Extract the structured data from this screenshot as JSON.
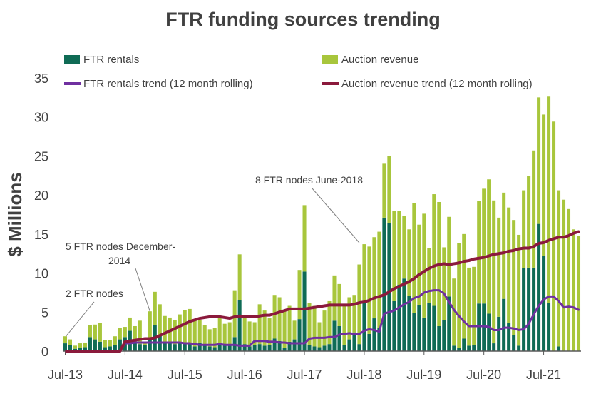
{
  "chart_data": {
    "type": "bar",
    "title": "FTR funding sources trending",
    "ylabel": "$ Millions",
    "xlabel": "",
    "ylim": [
      0,
      35
    ],
    "yticks": [
      0,
      5,
      10,
      15,
      20,
      25,
      30,
      35
    ],
    "grid": false,
    "legend_placement": "top",
    "stacked": true,
    "x_tick_labels": [
      {
        "label": "Jul-13",
        "index": 0
      },
      {
        "label": "Jul-14",
        "index": 12
      },
      {
        "label": "Jul-15",
        "index": 24
      },
      {
        "label": "Jul-16",
        "index": 36
      },
      {
        "label": "Jul-17",
        "index": 48
      },
      {
        "label": "Jul-18",
        "index": 60
      },
      {
        "label": "Jul-19",
        "index": 72
      },
      {
        "label": "Jul-20",
        "index": 84
      },
      {
        "label": "Jul-21",
        "index": 96
      }
    ],
    "series": [
      {
        "name": "FTR rentals",
        "kind": "bar",
        "color": "#0f6b55",
        "values": [
          1.0,
          0.8,
          0.3,
          0.4,
          0.5,
          1.8,
          1.5,
          1.2,
          0.5,
          0.6,
          0.8,
          1.5,
          1.8,
          2.6,
          1.2,
          0.9,
          0.8,
          1.6,
          3.3,
          2.0,
          1.2,
          1.0,
          0.9,
          1.0,
          1.1,
          0.9,
          0.6,
          1.1,
          0.8,
          0.6,
          0.5,
          0.8,
          0.7,
          0.9,
          1.8,
          6.5,
          0.9,
          0.6,
          0.8,
          0.9,
          0.7,
          0.8,
          1.6,
          1.3,
          0.4,
          1.2,
          1.5,
          4.1,
          10.2,
          0.8,
          0.6,
          0.5,
          0.7,
          0.9,
          3.9,
          3.2,
          0.8,
          1.5,
          2.4,
          0.9,
          6.4,
          2.2,
          4.2,
          3.0,
          17.1,
          16.4,
          6.4,
          8.5,
          9.3,
          7.1,
          4.9,
          5.9,
          4.3,
          6.2,
          5.8,
          3.2,
          4.0,
          7.0,
          0.7,
          0.4,
          1.6,
          0.7,
          0.8,
          6.1,
          6.1,
          4.8,
          1.0,
          4.4,
          6.7,
          3.6,
          2.1,
          0.7,
          10.6,
          10.7,
          10.7,
          16.3,
          12.2,
          6.2,
          0.0,
          0.6,
          0.0,
          0.0,
          0.0,
          0.0
        ],
        "note": "values in $ Millions; 104 monthly bars from Jul-13"
      },
      {
        "name": "Auction revenue",
        "kind": "bar",
        "color": "#a8c63c",
        "values": [
          0.9,
          0.7,
          0.4,
          0.6,
          0.6,
          1.5,
          1.9,
          2.4,
          0.9,
          0.8,
          1.1,
          1.5,
          1.3,
          1.7,
          2.0,
          3.0,
          0.4,
          3.5,
          4.3,
          4.0,
          3.3,
          3.3,
          3.1,
          3.7,
          4.2,
          4.5,
          3.4,
          2.9,
          2.5,
          2.2,
          2.5,
          3.6,
          2.8,
          2.8,
          6.0,
          5.9,
          3.6,
          3.2,
          2.9,
          5.1,
          4.5,
          3.4,
          5.6,
          5.6,
          4.7,
          4.6,
          2.4,
          6.3,
          8.5,
          5.4,
          5.2,
          3.2,
          4.5,
          5.5,
          5.8,
          5.4,
          5.2,
          5.4,
          4.8,
          10.2,
          7.3,
          11.2,
          10.4,
          12.3,
          6.9,
          8.6,
          11.6,
          9.5,
          8.0,
          8.5,
          14.1,
          10.3,
          13.3,
          7.0,
          14.3,
          15.9,
          9.3,
          10.2,
          8.6,
          13.4,
          13.4,
          10.0,
          10.0,
          13.1,
          14.7,
          17.2,
          18.3,
          12.7,
          13.6,
          14.8,
          14.7,
          14.2,
          10.0,
          11.7,
          15.0,
          16.2,
          18.1,
          26.4,
          29.4,
          20.0,
          19.4,
          18.2,
          15.6,
          14.8
        ],
        "note": "stacked on top of FTR rentals"
      },
      {
        "name": "FTR rentals trend (12 month rolling)",
        "kind": "line",
        "color": "#7030a0",
        "values": [
          0.0,
          0.0,
          0.0,
          0.0,
          0.0,
          0.0,
          0.0,
          0.0,
          0.0,
          0.0,
          0.0,
          0.0,
          1.0,
          1.0,
          1.1,
          1.1,
          1.1,
          1.1,
          1.1,
          1.1,
          1.1,
          1.1,
          1.1,
          1.1,
          1.0,
          1.0,
          0.9,
          0.8,
          0.8,
          0.8,
          0.8,
          0.9,
          0.8,
          0.8,
          0.8,
          0.7,
          0.7,
          0.7,
          1.3,
          1.3,
          1.3,
          1.2,
          1.2,
          1.1,
          1.1,
          1.0,
          1.0,
          1.0,
          1.0,
          1.6,
          1.7,
          1.7,
          1.7,
          1.8,
          1.8,
          2.1,
          2.2,
          2.3,
          2.2,
          2.2,
          2.6,
          2.8,
          2.7,
          2.5,
          4.8,
          5.0,
          5.2,
          5.6,
          6.0,
          6.3,
          6.8,
          7.0,
          7.5,
          7.7,
          7.8,
          7.8,
          7.4,
          6.3,
          5.3,
          4.5,
          3.8,
          3.2,
          3.2,
          3.2,
          3.2,
          3.1,
          2.7,
          2.7,
          3.0,
          3.0,
          2.9,
          2.7,
          2.8,
          3.5,
          4.7,
          5.8,
          6.6,
          7.0,
          7.0,
          6.4,
          5.6,
          5.7,
          5.6,
          5.3
        ]
      },
      {
        "name": "Auction revenue trend (12 month rolling)",
        "kind": "line",
        "color": "#8b1a3c",
        "values": [
          0.0,
          0.0,
          0.0,
          0.0,
          0.0,
          0.0,
          0.0,
          0.0,
          0.0,
          0.0,
          0.0,
          0.0,
          1.2,
          1.3,
          1.4,
          1.5,
          1.6,
          1.6,
          1.7,
          2.0,
          2.3,
          2.6,
          2.9,
          3.2,
          3.5,
          3.8,
          4.0,
          4.2,
          4.3,
          4.4,
          4.4,
          4.4,
          4.3,
          4.2,
          4.4,
          4.5,
          4.4,
          4.4,
          4.4,
          4.5,
          4.6,
          4.6,
          4.8,
          5.0,
          5.2,
          5.4,
          5.4,
          5.4,
          5.4,
          5.5,
          5.6,
          5.7,
          5.8,
          5.9,
          5.9,
          5.9,
          5.9,
          5.9,
          6.0,
          6.2,
          6.3,
          6.5,
          6.8,
          7.0,
          7.2,
          7.6,
          8.0,
          8.3,
          8.6,
          8.9,
          9.3,
          9.8,
          10.2,
          10.6,
          10.9,
          11.1,
          11.2,
          11.1,
          11.2,
          11.3,
          11.5,
          11.6,
          11.8,
          11.9,
          12.0,
          12.2,
          12.4,
          12.5,
          12.6,
          12.8,
          12.9,
          13.1,
          13.2,
          13.2,
          13.4,
          13.8,
          13.9,
          14.2,
          14.4,
          14.6,
          14.6,
          14.8,
          15.1,
          15.3
        ]
      }
    ],
    "annotations": [
      {
        "text": "2 FTR nodes",
        "index": 0,
        "value": 1.9
      },
      {
        "text": "5 FTR nodes December-\n2014",
        "index": 17,
        "value": 5.1
      },
      {
        "text": "8 FTR nodes June-2018",
        "index": 59,
        "value": 11.0
      }
    ]
  }
}
